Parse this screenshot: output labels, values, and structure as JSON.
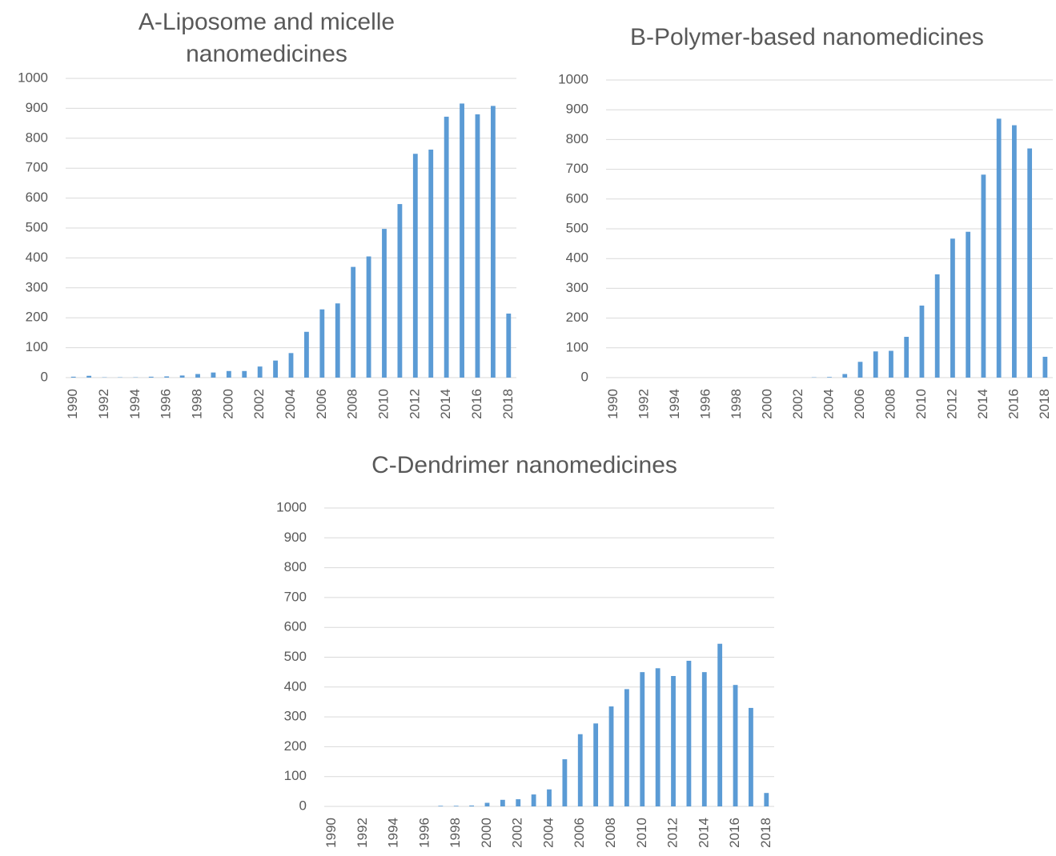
{
  "chart_data": [
    {
      "type": "bar",
      "title": "A-Liposome and micelle nanomedicines",
      "categories": [
        "1990",
        null,
        "1992",
        null,
        "1994",
        null,
        "1996",
        null,
        "1998",
        null,
        "2000",
        null,
        "2002",
        null,
        "2004",
        null,
        "2006",
        null,
        "2008",
        null,
        "2010",
        null,
        "2012",
        null,
        "2014",
        null,
        "2016",
        null,
        "2018"
      ],
      "values": [
        3,
        6,
        1,
        1,
        1,
        3,
        4,
        7,
        12,
        17,
        22,
        22,
        37,
        57,
        82,
        153,
        228,
        248,
        370,
        405,
        497,
        580,
        748,
        762,
        872,
        916,
        880,
        908,
        214
      ],
      "color": "#5b9bd5",
      "ylim": [
        0,
        1000
      ],
      "yticks": [
        0,
        100,
        200,
        300,
        400,
        500,
        600,
        700,
        800,
        900,
        1000
      ],
      "grid": true
    },
    {
      "type": "bar",
      "title": "B-Polymer-based nanomedicines",
      "categories": [
        "1990",
        null,
        "1992",
        null,
        "1994",
        null,
        "1996",
        null,
        "1998",
        null,
        "2000",
        null,
        "2002",
        null,
        "2004",
        null,
        "2006",
        null,
        "2008",
        null,
        "2010",
        null,
        "2012",
        null,
        "2014",
        null,
        "2016",
        null,
        "2018"
      ],
      "values": [
        0,
        0,
        0,
        0,
        0,
        0,
        0,
        0,
        0,
        0,
        0,
        0,
        0,
        1,
        2,
        12,
        53,
        88,
        90,
        137,
        242,
        347,
        467,
        490,
        682,
        870,
        848,
        770,
        70
      ],
      "color": "#5b9bd5",
      "ylim": [
        0,
        1000
      ],
      "yticks": [
        0,
        100,
        200,
        300,
        400,
        500,
        600,
        700,
        800,
        900,
        1000
      ],
      "grid": true
    },
    {
      "type": "bar",
      "title": "C-Dendrimer nanomedicines",
      "categories": [
        "1990",
        null,
        "1992",
        null,
        "1994",
        null,
        "1996",
        null,
        "1998",
        null,
        "2000",
        null,
        "2002",
        null,
        "2004",
        null,
        "2006",
        null,
        "2008",
        null,
        "2010",
        null,
        "2012",
        null,
        "2014",
        null,
        "2016",
        null,
        "2018"
      ],
      "values": [
        0,
        0,
        0,
        0,
        0,
        0,
        0,
        2,
        2,
        3,
        12,
        22,
        24,
        40,
        57,
        158,
        242,
        278,
        335,
        393,
        450,
        463,
        437,
        488,
        450,
        545,
        407,
        330,
        45
      ],
      "color": "#5b9bd5",
      "ylim": [
        0,
        1000
      ],
      "yticks": [
        0,
        100,
        200,
        300,
        400,
        500,
        600,
        700,
        800,
        900,
        1000
      ],
      "grid": true
    }
  ]
}
